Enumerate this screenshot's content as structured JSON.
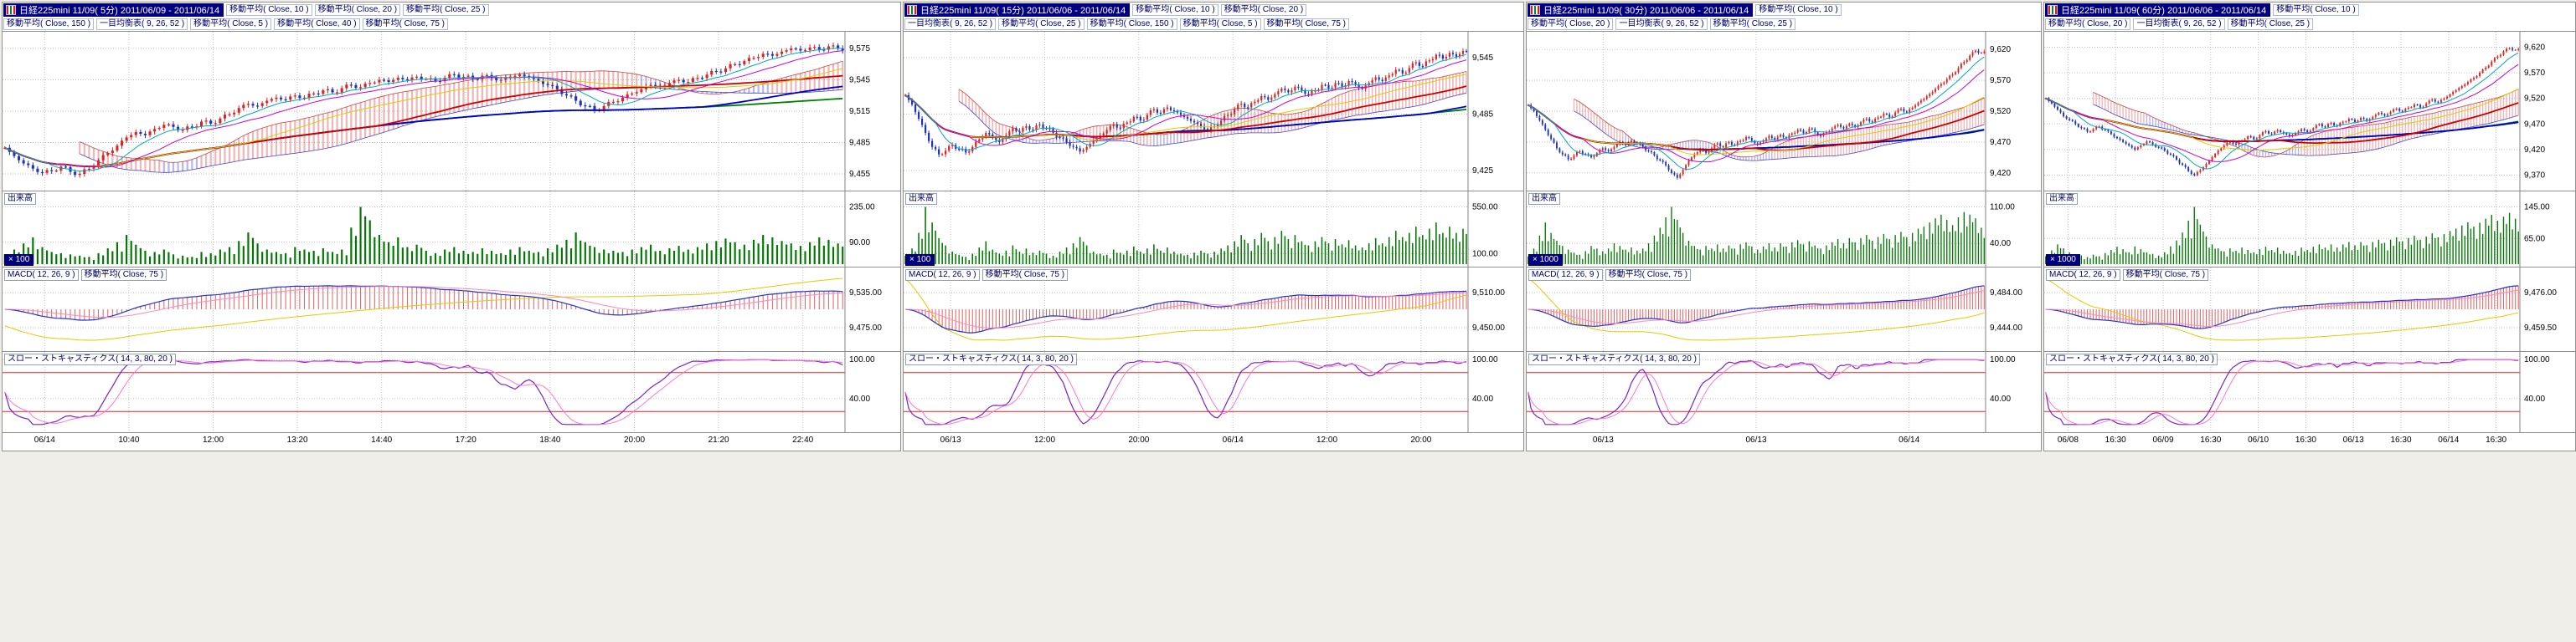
{
  "chart_data": [
    {
      "type": "candlestick",
      "title": "日経225mini 11/09( 5分) 2011/06/09 - 2011/06/14",
      "legend_row1": [
        "移動平均( Close, 10 )",
        "移動平均( Close, 20 )",
        "移動平均( Close, 25 )"
      ],
      "legend_row2": [
        "移動平均( Close, 150 )",
        "一目均衡表( 9, 26, 52 )",
        "移動平均( Close, 5 )",
        "移動平均( Close, 40 )",
        "移動平均( Close, 75 )"
      ],
      "price_axis": {
        "labels": [
          "9,575",
          "9,545",
          "9,515",
          "9,485",
          "9,455"
        ],
        "min": 9443,
        "max": 9587
      },
      "closes": [
        9480,
        9472,
        9465,
        9460,
        9456,
        9458,
        9462,
        9457,
        9455,
        9460,
        9468,
        9475,
        9482,
        9490,
        9495,
        9492,
        9498,
        9502,
        9500,
        9497,
        9500,
        9505,
        9503,
        9508,
        9512,
        9518,
        9522,
        9520,
        9525,
        9528,
        9526,
        9530,
        9528,
        9532,
        9535,
        9533,
        9537,
        9540,
        9538,
        9542,
        9545,
        9543,
        9547,
        9545,
        9548,
        9546,
        9544,
        9547,
        9550,
        9548,
        9546,
        9549,
        9547,
        9545,
        9548,
        9550,
        9547,
        9544,
        9540,
        9536,
        9530,
        9525,
        9520,
        9516,
        9520,
        9524,
        9528,
        9532,
        9536,
        9540,
        9538,
        9542,
        9545,
        9543,
        9547,
        9550,
        9553,
        9556,
        9560,
        9563,
        9566,
        9570,
        9568,
        9572,
        9575,
        9573,
        9576,
        9574,
        9577,
        9575
      ],
      "volume": {
        "label": "出来高",
        "unit": "× 100",
        "axis_labels": [
          "235.00",
          "90.00"
        ],
        "values": [
          40,
          60,
          85,
          110,
          70,
          50,
          45,
          40,
          35,
          30,
          45,
          65,
          90,
          120,
          80,
          55,
          50,
          60,
          40,
          35,
          30,
          50,
          45,
          60,
          70,
          95,
          130,
          85,
          60,
          50,
          45,
          70,
          60,
          55,
          65,
          50,
          60,
          150,
          235,
          180,
          120,
          90,
          110,
          70,
          80,
          55,
          45,
          60,
          70,
          55,
          50,
          65,
          55,
          45,
          60,
          70,
          55,
          50,
          65,
          80,
          100,
          130,
          90,
          70,
          60,
          55,
          50,
          60,
          70,
          80,
          55,
          65,
          75,
          60,
          70,
          85,
          95,
          105,
          90,
          80,
          100,
          120,
          110,
          95,
          85,
          75,
          90,
          110,
          100,
          85
        ]
      },
      "macd": {
        "label": "MACD( 12, 26, 9 )",
        "overlay_label": "移動平均( Close, 75 )",
        "axis_labels": [
          "9,535.00",
          "9,475.00"
        ]
      },
      "stochastics": {
        "label": "スロー・ストキャスティクス( 14, 3, 80, 20 )",
        "axis_labels": [
          "100.00",
          "40.00"
        ],
        "upper": 80,
        "lower": 20
      },
      "x_labels": [
        "06/14",
        "10:40",
        "12:00",
        "13:20",
        "14:40",
        "17:20",
        "18:40",
        "20:00",
        "21:20",
        "22:40"
      ]
    },
    {
      "type": "candlestick",
      "title": "日経225mini 11/09( 15分) 2011/06/06 - 2011/06/14",
      "legend_row1": [
        "移動平均( Close, 10 )",
        "移動平均( Close, 20 )"
      ],
      "legend_row2": [
        "一目均衡表( 9, 26, 52 )",
        "移動平均( Close, 25 )",
        "移動平均( Close, 150 )",
        "移動平均( Close, 5 )",
        "移動平均( Close, 75 )"
      ],
      "price_axis": {
        "labels": [
          "9,545",
          "9,485",
          "9,425"
        ],
        "min": 9408,
        "max": 9568
      },
      "closes": [
        9505,
        9495,
        9480,
        9465,
        9450,
        9442,
        9446,
        9452,
        9448,
        9444,
        9450,
        9458,
        9465,
        9460,
        9455,
        9462,
        9470,
        9466,
        9472,
        9468,
        9474,
        9470,
        9465,
        9460,
        9455,
        9450,
        9445,
        9450,
        9456,
        9462,
        9468,
        9474,
        9470,
        9476,
        9482,
        9478,
        9484,
        9490,
        9486,
        9492,
        9488,
        9484,
        9480,
        9476,
        9472,
        9468,
        9472,
        9478,
        9484,
        9490,
        9496,
        9492,
        9498,
        9504,
        9500,
        9506,
        9512,
        9508,
        9514,
        9510,
        9506,
        9510,
        9516,
        9512,
        9518,
        9514,
        9520,
        9516,
        9512,
        9518,
        9524,
        9520,
        9526,
        9532,
        9528,
        9534,
        9540,
        9536,
        9542,
        9548,
        9544,
        9550,
        9546,
        9552
      ],
      "volume": {
        "label": "出来高",
        "unit": "× 100",
        "axis_labels": [
          "550.00",
          "100.00"
        ],
        "values": [
          80,
          150,
          300,
          550,
          400,
          250,
          180,
          120,
          90,
          70,
          100,
          160,
          220,
          140,
          100,
          130,
          180,
          120,
          150,
          110,
          130,
          100,
          80,
          120,
          160,
          200,
          260,
          180,
          120,
          100,
          90,
          140,
          110,
          130,
          170,
          120,
          150,
          190,
          130,
          160,
          120,
          100,
          90,
          110,
          130,
          100,
          120,
          150,
          180,
          220,
          280,
          200,
          240,
          300,
          220,
          260,
          320,
          240,
          280,
          220,
          180,
          220,
          260,
          200,
          240,
          190,
          230,
          180,
          160,
          200,
          250,
          200,
          260,
          320,
          260,
          300,
          360,
          280,
          340,
          400,
          300,
          360,
          300,
          340
        ]
      },
      "macd": {
        "label": "MACD( 12, 26, 9 )",
        "overlay_label": "移動平均( Close, 75 )",
        "axis_labels": [
          "9,510.00",
          "9,450.00"
        ]
      },
      "stochastics": {
        "label": "スロー・ストキャスティクス( 14, 3, 80, 20 )",
        "axis_labels": [
          "100.00",
          "40.00"
        ],
        "upper": 80,
        "lower": 20
      },
      "x_labels": [
        "06/13",
        "12:00",
        "20:00",
        "06/14",
        "12:00",
        "20:00"
      ]
    },
    {
      "type": "candlestick",
      "title": "日経225mini 11/09( 30分) 2011/06/06 - 2011/06/14",
      "legend_row1": [
        "移動平均( Close, 10 )"
      ],
      "legend_row2": [
        "移動平均( Close, 20 )",
        "一目均衡表( 9, 26, 52 )",
        "移動平均( Close, 25 )"
      ],
      "price_axis": {
        "labels": [
          "9,620",
          "9,570",
          "9,520",
          "9,470",
          "9,420"
        ],
        "min": 9398,
        "max": 9642
      },
      "closes": [
        9530,
        9520,
        9505,
        9490,
        9475,
        9460,
        9450,
        9442,
        9448,
        9455,
        9450,
        9445,
        9452,
        9460,
        9455,
        9462,
        9470,
        9465,
        9472,
        9468,
        9462,
        9455,
        9448,
        9440,
        9432,
        9420,
        9412,
        9425,
        9440,
        9450,
        9458,
        9452,
        9460,
        9468,
        9462,
        9470,
        9465,
        9472,
        9478,
        9472,
        9466,
        9472,
        9480,
        9474,
        9482,
        9476,
        9484,
        9490,
        9484,
        9492,
        9486,
        9480,
        9486,
        9492,
        9498,
        9492,
        9500,
        9494,
        9502,
        9508,
        9502,
        9510,
        9516,
        9510,
        9518,
        9524,
        9518,
        9526,
        9534,
        9540,
        9548,
        9556,
        9564,
        9572,
        9580,
        9590,
        9600,
        9610,
        9618,
        9615
      ],
      "volume": {
        "label": "出来高",
        "unit": "× 1000",
        "axis_labels": [
          "110.00",
          "40.00"
        ],
        "values": [
          15,
          30,
          55,
          80,
          60,
          45,
          35,
          28,
          22,
          18,
          25,
          35,
          30,
          25,
          30,
          40,
          35,
          28,
          32,
          26,
          30,
          40,
          55,
          70,
          90,
          110,
          85,
          60,
          45,
          35,
          28,
          35,
          30,
          38,
          30,
          36,
          30,
          38,
          42,
          34,
          28,
          34,
          40,
          32,
          40,
          34,
          42,
          46,
          38,
          44,
          36,
          30,
          36,
          42,
          48,
          40,
          50,
          42,
          50,
          56,
          45,
          52,
          58,
          48,
          56,
          62,
          52,
          60,
          68,
          72,
          80,
          88,
          95,
          85,
          75,
          90,
          100,
          95,
          88,
          70
        ]
      },
      "macd": {
        "label": "MACD( 12, 26, 9 )",
        "overlay_label": "移動平均( Close, 75 )",
        "axis_labels": [
          "9,484.00",
          "9,444.00"
        ]
      },
      "stochastics": {
        "label": "スロー・ストキャスティクス( 14, 3, 80, 20 )",
        "axis_labels": [
          "100.00",
          "40.00"
        ],
        "upper": 80,
        "lower": 20
      },
      "x_labels": [
        "06/13",
        "06/13",
        "06/14"
      ]
    },
    {
      "type": "candlestick",
      "title": "日経225mini 11/09( 60分) 2011/06/06 - 2011/06/14",
      "legend_row1": [
        "移動平均( Close, 10 )"
      ],
      "legend_row2": [
        "移動平均( Close, 20 )",
        "一目均衡表( 9, 26, 52 )",
        "移動平均( Close, 25 )"
      ],
      "price_axis": {
        "labels": [
          "9,620",
          "9,570",
          "9,520",
          "9,470",
          "9,420",
          "9,370"
        ],
        "min": 9348,
        "max": 9642
      },
      "closes": [
        9520,
        9510,
        9498,
        9485,
        9478,
        9470,
        9462,
        9455,
        9460,
        9465,
        9458,
        9450,
        9442,
        9435,
        9428,
        9420,
        9428,
        9436,
        9430,
        9424,
        9418,
        9410,
        9400,
        9390,
        9378,
        9370,
        9380,
        9392,
        9405,
        9418,
        9428,
        9436,
        9430,
        9438,
        9446,
        9440,
        9448,
        9456,
        9450,
        9458,
        9452,
        9446,
        9452,
        9460,
        9454,
        9462,
        9470,
        9464,
        9472,
        9466,
        9474,
        9480,
        9474,
        9482,
        9476,
        9484,
        9492,
        9486,
        9494,
        9500,
        9494,
        9502,
        9508,
        9502,
        9510,
        9518,
        9512,
        9520,
        9528,
        9536,
        9544,
        9552,
        9560,
        9570,
        9580,
        9592,
        9602,
        9612,
        9618,
        9615
      ],
      "volume": {
        "label": "出来高",
        "unit": "× 1000",
        "axis_labels": [
          "145.00",
          "65.00"
        ],
        "values": [
          20,
          35,
          50,
          40,
          30,
          25,
          22,
          18,
          24,
          20,
          28,
          36,
          44,
          38,
          30,
          45,
          38,
          30,
          26,
          22,
          30,
          45,
          60,
          80,
          110,
          145,
          100,
          70,
          50,
          40,
          32,
          40,
          34,
          42,
          36,
          30,
          38,
          44,
          36,
          42,
          34,
          28,
          34,
          42,
          36,
          44,
          50,
          42,
          50,
          42,
          50,
          56,
          48,
          56,
          48,
          56,
          62,
          54,
          62,
          68,
          58,
          66,
          72,
          62,
          70,
          78,
          68,
          76,
          84,
          90,
          98,
          106,
          95,
          105,
          115,
          125,
          110,
          120,
          130,
          115
        ]
      },
      "macd": {
        "label": "MACD( 12, 26, 9 )",
        "overlay_label": "移動平均( Close, 75 )",
        "axis_labels": [
          "9,476.00",
          "9,459.50"
        ]
      },
      "stochastics": {
        "label": "スロー・ストキャスティクス( 14, 3, 80, 20 )",
        "axis_labels": [
          "100.00",
          "40.00"
        ],
        "upper": 80,
        "lower": 20
      },
      "x_labels": [
        "06/08",
        "16:30",
        "06/09",
        "16:30",
        "06/10",
        "16:30",
        "06/13",
        "16:30",
        "06/14",
        "16:30"
      ]
    }
  ],
  "colors": {
    "title_bar": "#000080",
    "candle_up": "#dd2222",
    "candle_down": "#2233bb",
    "volume_bar": "#007700",
    "ma_slow": "#008000",
    "ma_mid": "#0000cc",
    "ma_fast": "#cc0000",
    "grid": "#c0c0c0",
    "threshold": "#ee2222"
  }
}
